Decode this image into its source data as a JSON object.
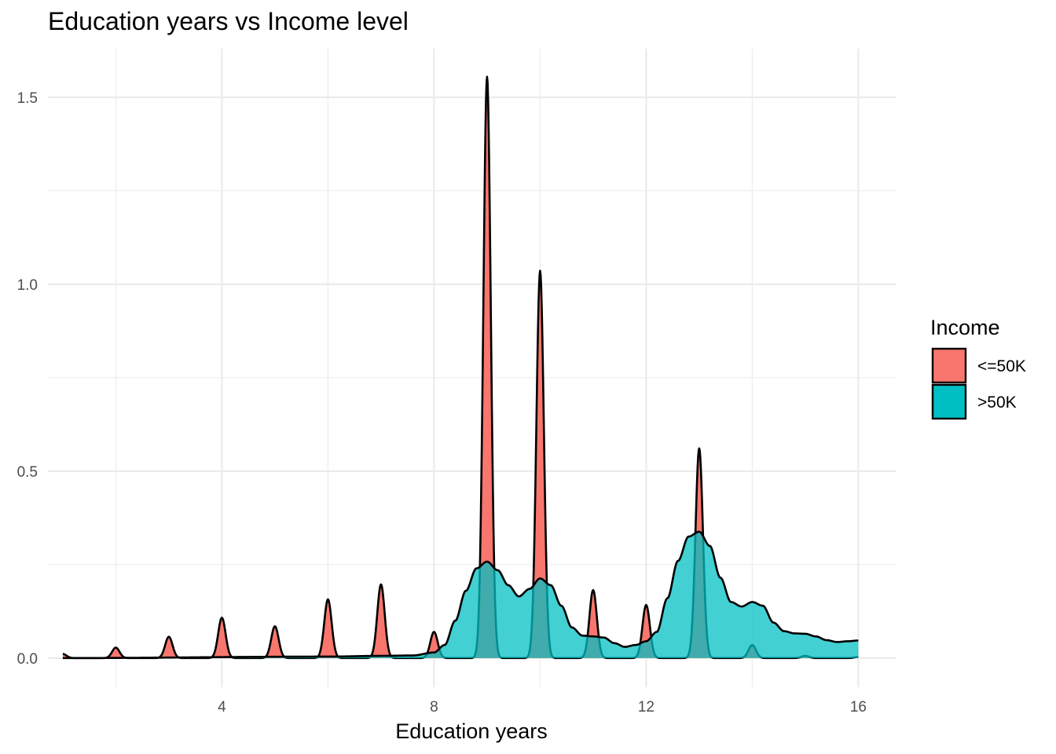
{
  "chart_data": {
    "type": "area",
    "subtype": "density",
    "title": "Education years vs Income level",
    "xlabel": "Education years",
    "ylabel": "",
    "xlim": [
      0.72,
      16.72
    ],
    "ylim": [
      -0.078,
      1.63
    ],
    "x_ticks": [
      4,
      8,
      12,
      16
    ],
    "x_tick_labels": [
      "4",
      "8",
      "12",
      "16"
    ],
    "y_ticks": [
      0.0,
      0.5,
      1.0,
      1.5
    ],
    "y_tick_labels": [
      "0.0",
      "0.5",
      "1.0",
      "1.5"
    ],
    "grid": true,
    "legend": {
      "title": "Income",
      "position": "right",
      "entries": [
        {
          "label": "<=50K",
          "color": "#F8766D"
        },
        {
          "label": ">50K",
          "color": "#00BFC4"
        }
      ]
    },
    "series": [
      {
        "name": "<=50K",
        "color": "#F8766D",
        "peaks": [
          {
            "x": 1,
            "y": 0.011
          },
          {
            "x": 2,
            "y": 0.028
          },
          {
            "x": 3,
            "y": 0.057
          },
          {
            "x": 4,
            "y": 0.108
          },
          {
            "x": 5,
            "y": 0.085
          },
          {
            "x": 6,
            "y": 0.157
          },
          {
            "x": 7,
            "y": 0.197
          },
          {
            "x": 8,
            "y": 0.07
          },
          {
            "x": 9,
            "y": 1.555
          },
          {
            "x": 10,
            "y": 1.036
          },
          {
            "x": 11,
            "y": 0.182
          },
          {
            "x": 12,
            "y": 0.142
          },
          {
            "x": 13,
            "y": 0.561
          },
          {
            "x": 14,
            "y": 0.035
          },
          {
            "x": 15,
            "y": 0.006
          },
          {
            "x": 16,
            "y": 0.003
          }
        ]
      },
      {
        "name": ">50K",
        "color": "#00BFC4",
        "curve": [
          [
            1.0,
            0.0
          ],
          [
            6.0,
            0.004
          ],
          [
            7.0,
            0.006
          ],
          [
            7.6,
            0.007
          ],
          [
            8.0,
            0.015
          ],
          [
            8.2,
            0.035
          ],
          [
            8.4,
            0.1
          ],
          [
            8.6,
            0.18
          ],
          [
            8.8,
            0.24
          ],
          [
            9.0,
            0.258
          ],
          [
            9.2,
            0.235
          ],
          [
            9.4,
            0.195
          ],
          [
            9.6,
            0.165
          ],
          [
            9.8,
            0.185
          ],
          [
            10.0,
            0.213
          ],
          [
            10.2,
            0.195
          ],
          [
            10.4,
            0.14
          ],
          [
            10.6,
            0.082
          ],
          [
            10.8,
            0.06
          ],
          [
            11.0,
            0.058
          ],
          [
            11.2,
            0.055
          ],
          [
            11.4,
            0.04
          ],
          [
            11.6,
            0.03
          ],
          [
            11.8,
            0.035
          ],
          [
            12.0,
            0.045
          ],
          [
            12.2,
            0.07
          ],
          [
            12.4,
            0.16
          ],
          [
            12.6,
            0.26
          ],
          [
            12.8,
            0.325
          ],
          [
            13.0,
            0.338
          ],
          [
            13.2,
            0.3
          ],
          [
            13.4,
            0.215
          ],
          [
            13.6,
            0.15
          ],
          [
            13.8,
            0.138
          ],
          [
            14.0,
            0.15
          ],
          [
            14.2,
            0.14
          ],
          [
            14.4,
            0.095
          ],
          [
            14.6,
            0.072
          ],
          [
            14.8,
            0.066
          ],
          [
            15.0,
            0.065
          ],
          [
            15.2,
            0.058
          ],
          [
            15.4,
            0.048
          ],
          [
            15.6,
            0.043
          ],
          [
            15.8,
            0.045
          ],
          [
            16.0,
            0.047
          ]
        ]
      }
    ]
  }
}
